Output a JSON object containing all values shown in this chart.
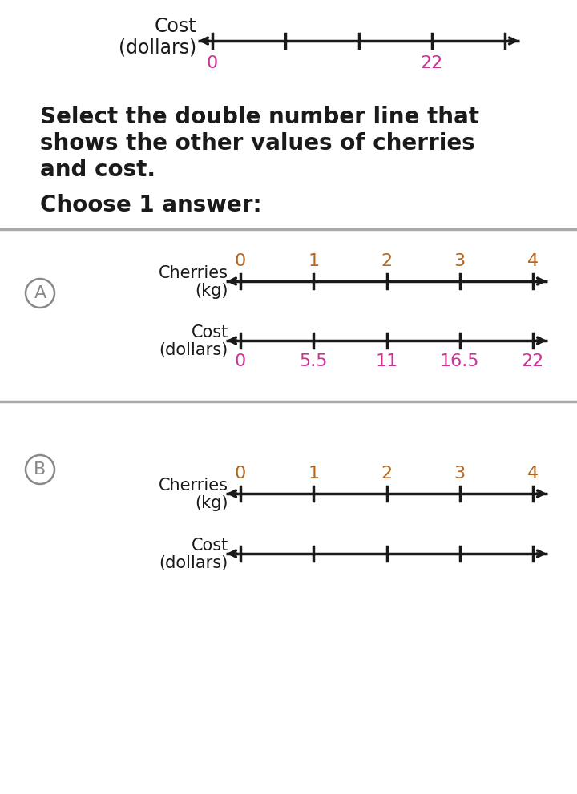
{
  "bg_color": "#ffffff",
  "arrow_color": "#1a1a1a",
  "top_label_color": "#cc3399",
  "cherry_tick_color": "#b5651d",
  "cost_tick_color": "#cc3399",
  "divider_color": "#aaaaaa",
  "circle_color": "#888888",
  "text_color": "#1a1a1a",
  "top_line": {
    "label_text": [
      "Cost",
      "(dollars)"
    ],
    "tick_count": 5,
    "labeled_ticks": {
      "0": 0,
      "22": 4
    }
  },
  "question_lines": [
    "Select the double number line that",
    "shows the other values of cherries",
    "and cost."
  ],
  "choose_text": "Choose 1 answer:",
  "options": [
    {
      "letter": "A",
      "cherries_ticks": [
        "0",
        "1",
        "2",
        "3",
        "4"
      ],
      "cost_ticks": [
        "0",
        "5.5",
        "11",
        "16.5",
        "22"
      ]
    },
    {
      "letter": "B",
      "cherries_ticks": [
        "0",
        "1",
        "2",
        "3",
        "4"
      ],
      "cost_ticks": null
    }
  ]
}
